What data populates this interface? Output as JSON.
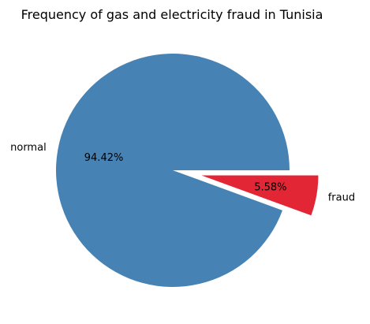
{
  "chart_data": {
    "type": "pie",
    "title": "Frequency of gas and electricity fraud in Tunisia",
    "labels": [
      "normal",
      "fraud"
    ],
    "values": [
      94.42,
      5.58
    ],
    "percent_labels": [
      "94.42%",
      "5.58%"
    ],
    "colors": [
      "#4682B4",
      "#E32636"
    ],
    "exploded": [
      false,
      true
    ],
    "legend": "none"
  }
}
